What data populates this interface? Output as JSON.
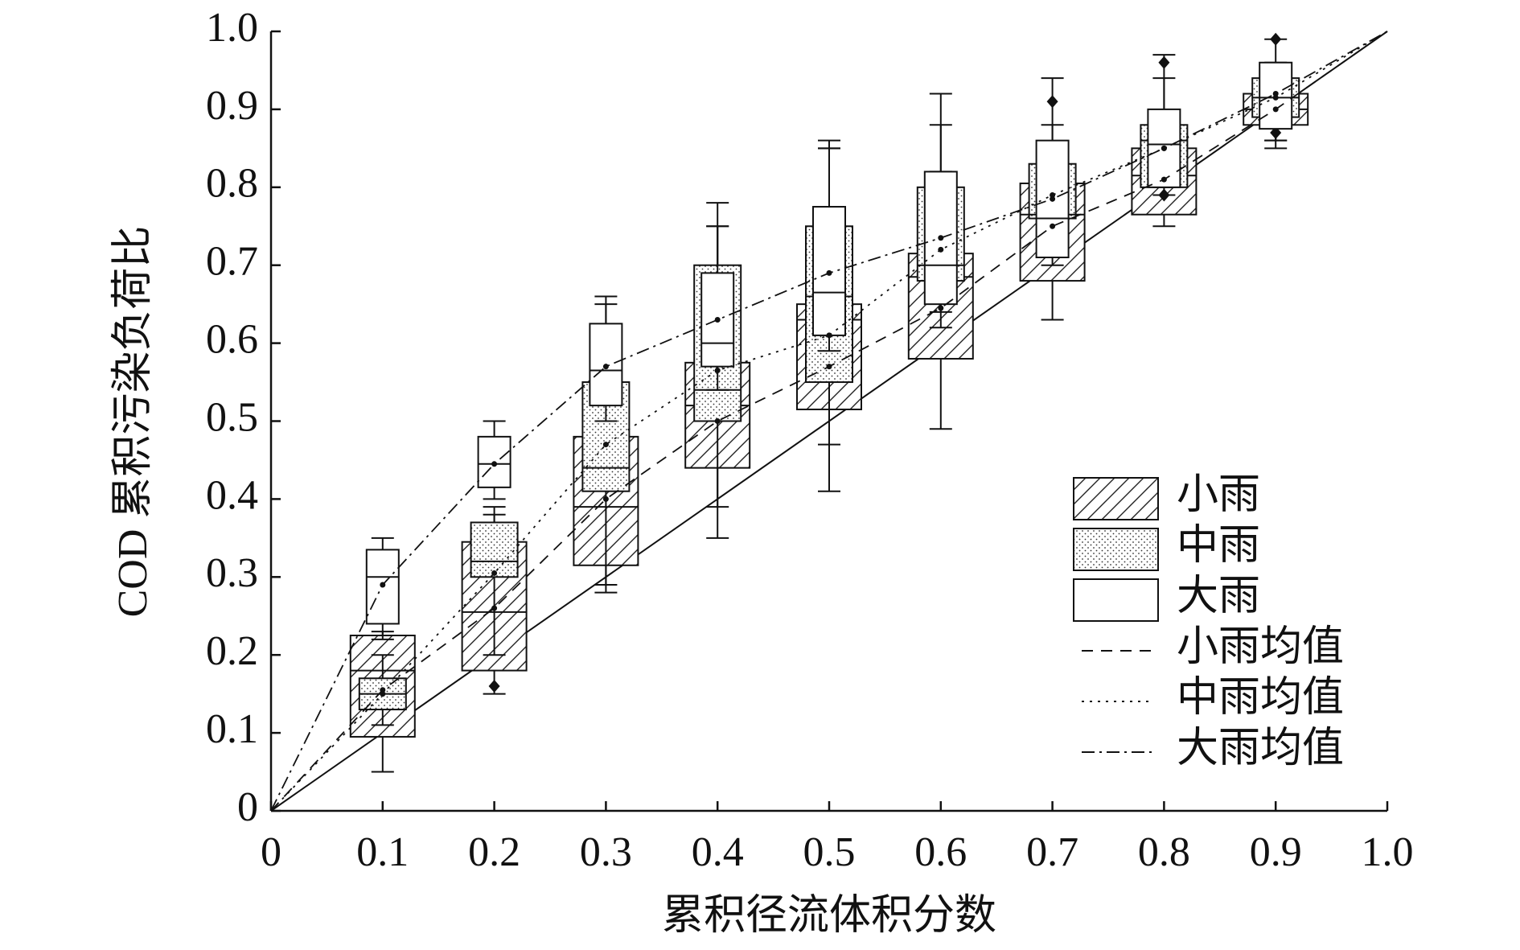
{
  "chart_data": {
    "type": "box",
    "xlabel": "累积径流体积分数",
    "ylabel": "COD 累积污染负荷比",
    "xlim": [
      0,
      1
    ],
    "ylim": [
      0,
      1
    ],
    "xticks": [
      0,
      0.1,
      0.2,
      0.3,
      0.4,
      0.5,
      0.6,
      0.7,
      0.8,
      0.9,
      {
        "value": 1,
        "label": "1.0"
      }
    ],
    "yticks": [
      0,
      0.1,
      0.2,
      0.3,
      0.4,
      0.5,
      0.6,
      0.7,
      0.8,
      0.9,
      {
        "value": 1,
        "label": "1.0"
      }
    ],
    "box_x": [
      0.1,
      0.2,
      0.3,
      0.4,
      0.5,
      0.6,
      0.7,
      0.8,
      0.9
    ],
    "series": [
      {
        "name": "小雨",
        "fill": "hatch",
        "whisker_low": [
          0.05,
          0.15,
          0.28,
          0.35,
          0.41,
          0.49,
          0.63,
          0.75,
          0.85
        ],
        "q1": [
          0.095,
          0.18,
          0.315,
          0.44,
          0.515,
          0.58,
          0.68,
          0.765,
          0.88
        ],
        "median": [
          0.18,
          0.255,
          0.39,
          0.52,
          0.63,
          0.685,
          0.765,
          0.815,
          0.9
        ],
        "q3": [
          0.225,
          0.345,
          0.48,
          0.575,
          0.65,
          0.715,
          0.805,
          0.85,
          0.92
        ],
        "whisker_high": [
          0.23,
          0.38,
          0.55,
          0.75,
          0.85,
          0.82,
          0.83,
          0.87,
          0.93
        ],
        "outliers": [
          [],
          [
            0.16
          ],
          [],
          [],
          [],
          [],
          [],
          [],
          []
        ]
      },
      {
        "name": "中雨",
        "fill": "dots",
        "whisker_low": [
          0.11,
          0.2,
          0.29,
          0.39,
          0.47,
          0.62,
          0.72,
          0.8,
          0.86
        ],
        "q1": [
          0.13,
          0.3,
          0.41,
          0.5,
          0.55,
          0.68,
          0.76,
          0.8,
          0.89
        ],
        "median": [
          0.15,
          0.32,
          0.44,
          0.54,
          0.66,
          0.7,
          0.765,
          0.86,
          0.915
        ],
        "q3": [
          0.17,
          0.37,
          0.55,
          0.7,
          0.75,
          0.8,
          0.83,
          0.88,
          0.94
        ],
        "whisker_high": [
          0.2,
          0.39,
          0.65,
          0.78,
          0.86,
          0.88,
          0.88,
          0.94,
          0.96
        ],
        "outliers": [
          [],
          [],
          [],
          [],
          [],
          [],
          [],
          [
            0.79
          ],
          [
            0.87
          ]
        ]
      },
      {
        "name": "大雨",
        "fill": "none",
        "whisker_low": [
          0.22,
          0.4,
          0.5,
          0.54,
          0.59,
          0.64,
          0.7,
          0.79,
          0.86
        ],
        "q1": [
          0.24,
          0.415,
          0.52,
          0.57,
          0.61,
          0.65,
          0.71,
          0.8,
          0.875
        ],
        "median": [
          0.3,
          0.445,
          0.565,
          0.6,
          0.665,
          0.7,
          0.76,
          0.855,
          0.915
        ],
        "q3": [
          0.335,
          0.48,
          0.625,
          0.69,
          0.775,
          0.82,
          0.86,
          0.9,
          0.96
        ],
        "whisker_high": [
          0.35,
          0.5,
          0.66,
          0.75,
          0.85,
          0.92,
          0.94,
          0.97,
          0.99
        ],
        "outliers": [
          [],
          [],
          [],
          [],
          [],
          [],
          [
            0.91
          ],
          [
            0.96
          ],
          [
            0.99
          ]
        ]
      }
    ],
    "x": [
      0,
      0.1,
      0.2,
      0.3,
      0.4,
      0.5,
      0.6,
      0.7,
      0.8,
      0.9,
      1
    ],
    "mean_lines": [
      {
        "name": "小雨均值",
        "style": "dashed",
        "values": [
          0,
          0.155,
          0.26,
          0.4,
          0.5,
          0.57,
          0.645,
          0.75,
          0.81,
          0.9,
          1
        ]
      },
      {
        "name": "中雨均值",
        "style": "dotted",
        "values": [
          0,
          0.15,
          0.305,
          0.47,
          0.565,
          0.61,
          0.72,
          0.79,
          0.85,
          0.915,
          1
        ]
      },
      {
        "name": "大雨均值",
        "style": "dashdot",
        "values": [
          0,
          0.29,
          0.445,
          0.57,
          0.63,
          0.69,
          0.735,
          0.785,
          0.85,
          0.92,
          1
        ]
      }
    ],
    "legend": "right"
  }
}
